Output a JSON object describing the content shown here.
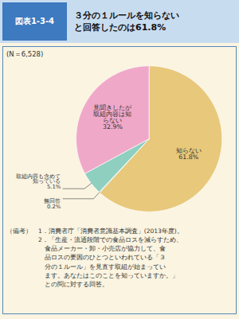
{
  "chart_data": {
    "type": "pie",
    "label": "図表1-3-4",
    "title": "３分の１ルールを知らない\nと回答したのは61.8%",
    "subtitle": "(N＝6,528)",
    "categories": [
      "知らない",
      "無回答",
      "取組内容も含めて\n知っている",
      "見聞きしたが\n取組内容は知\nらない"
    ],
    "values": [
      61.8,
      0.2,
      5.1,
      32.9
    ],
    "value_labels": [
      "61.8%",
      "0.2%",
      "5.1%",
      "32.9%"
    ],
    "colors": [
      "#E8C87A",
      "#A8CCBB",
      "#8ECFBF",
      "#F0A8C8"
    ],
    "data_labels": true,
    "notes": [
      "（備考）　1．消費者庁「消費者意識基本調査」(2013年度)。",
      "　　　　　2．「生産・流通段階での食品ロスを減らすため、",
      "　　　　　　食品メーカー・卸・小売店が協力して、食",
      "　　　　　　品ロスの要因のひとつといわれている「３",
      "　　　　　　分の１ルール」を見直す取組が始まってい",
      "　　　　　　ます。あなたはこのことを知っていますか。」",
      "　　　　　　との問に対する回答。"
    ]
  }
}
